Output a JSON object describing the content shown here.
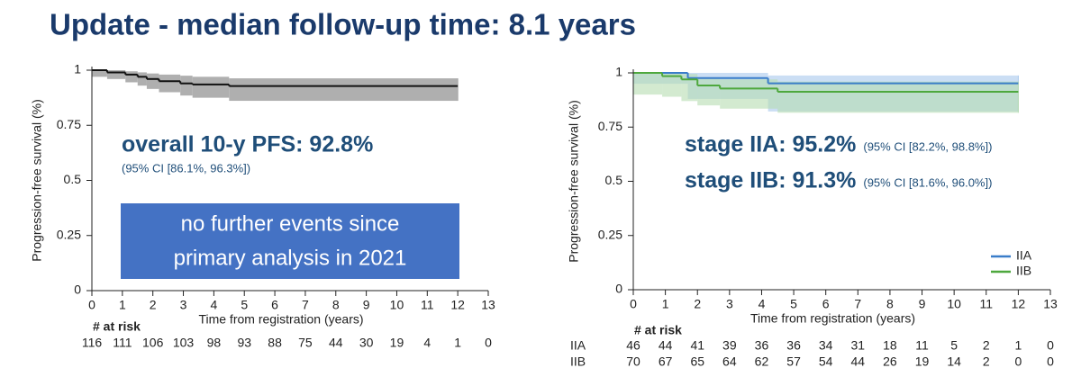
{
  "title": "Update - median follow-up time: 8.1 years",
  "chart_data": [
    {
      "type": "step",
      "xlabel": "Time from registration (years)",
      "ylabel": "Progression-free survival (%)",
      "xlim": [
        0,
        13
      ],
      "xticks": [
        0,
        1,
        2,
        3,
        4,
        5,
        6,
        7,
        8,
        9,
        10,
        11,
        12,
        13
      ],
      "ylim": [
        0,
        1
      ],
      "yticks": [
        0,
        0.25,
        0.5,
        0.75,
        1
      ],
      "series": [
        {
          "color": "#111111",
          "band_color": "#a6a6a6",
          "x": [
            0,
            0.5,
            1.1,
            1.5,
            1.8,
            2.2,
            2.9,
            3.3,
            4.5,
            12
          ],
          "values": [
            1,
            0.99,
            0.98,
            0.97,
            0.96,
            0.95,
            0.94,
            0.935,
            0.928,
            0.928
          ],
          "ci_lower": [
            0.97,
            0.96,
            0.945,
            0.93,
            0.915,
            0.9,
            0.885,
            0.875,
            0.861,
            0.861
          ],
          "ci_upper": [
            1,
            1,
            0.995,
            0.99,
            0.985,
            0.98,
            0.975,
            0.97,
            0.963,
            0.963
          ]
        }
      ],
      "annotations": [
        "overall 10-y PFS: 92.8%",
        "(95% CI [86.1%, 96.3%])"
      ],
      "callout": [
        "no further events since",
        "primary analysis in 2021"
      ],
      "risk_table": {
        "title": "# at risk",
        "rows": [
          [
            116,
            111,
            106,
            103,
            98,
            93,
            88,
            75,
            44,
            30,
            19,
            4,
            1,
            0
          ]
        ]
      }
    },
    {
      "type": "step",
      "xlabel": "Time from registration (years)",
      "ylabel": "Progression-free survival (%)",
      "xlim": [
        0,
        13
      ],
      "xticks": [
        0,
        1,
        2,
        3,
        4,
        5,
        6,
        7,
        8,
        9,
        10,
        11,
        12,
        13
      ],
      "ylim": [
        0,
        1
      ],
      "yticks": [
        0,
        0.25,
        0.5,
        0.75,
        1
      ],
      "legend": "lower right",
      "series": [
        {
          "name": "IIA",
          "color": "#3a7dc9",
          "band_color": "#a9c8ec",
          "x": [
            0,
            1.7,
            4.2,
            12
          ],
          "values": [
            1,
            0.976,
            0.952,
            0.952
          ],
          "ci_lower": [
            0.95,
            0.88,
            0.822,
            0.822
          ],
          "ci_upper": [
            1,
            1,
            0.988,
            0.988
          ]
        },
        {
          "name": "IIB",
          "color": "#4ea83e",
          "band_color": "#b6dcb0",
          "x": [
            0,
            0.9,
            1.5,
            2.0,
            2.7,
            4.5,
            12
          ],
          "values": [
            1,
            0.985,
            0.97,
            0.942,
            0.928,
            0.913,
            0.913
          ],
          "ci_lower": [
            0.9,
            0.89,
            0.87,
            0.85,
            0.835,
            0.816,
            0.816
          ],
          "ci_upper": [
            1,
            1,
            0.995,
            0.98,
            0.97,
            0.96,
            0.96
          ]
        }
      ],
      "annotations": [
        "stage IIA: 95.2%",
        "(95% CI [82.2%, 98.8%])",
        "stage IIB: 91.3%",
        "(95% CI [81.6%, 96.0%])"
      ],
      "risk_table": {
        "title": "# at risk",
        "rows": [
          [
            46,
            44,
            41,
            39,
            36,
            36,
            34,
            31,
            18,
            11,
            5,
            2,
            1,
            0
          ],
          [
            70,
            67,
            65,
            64,
            62,
            57,
            54,
            44,
            26,
            19,
            14,
            2,
            0,
            0
          ]
        ]
      }
    }
  ]
}
